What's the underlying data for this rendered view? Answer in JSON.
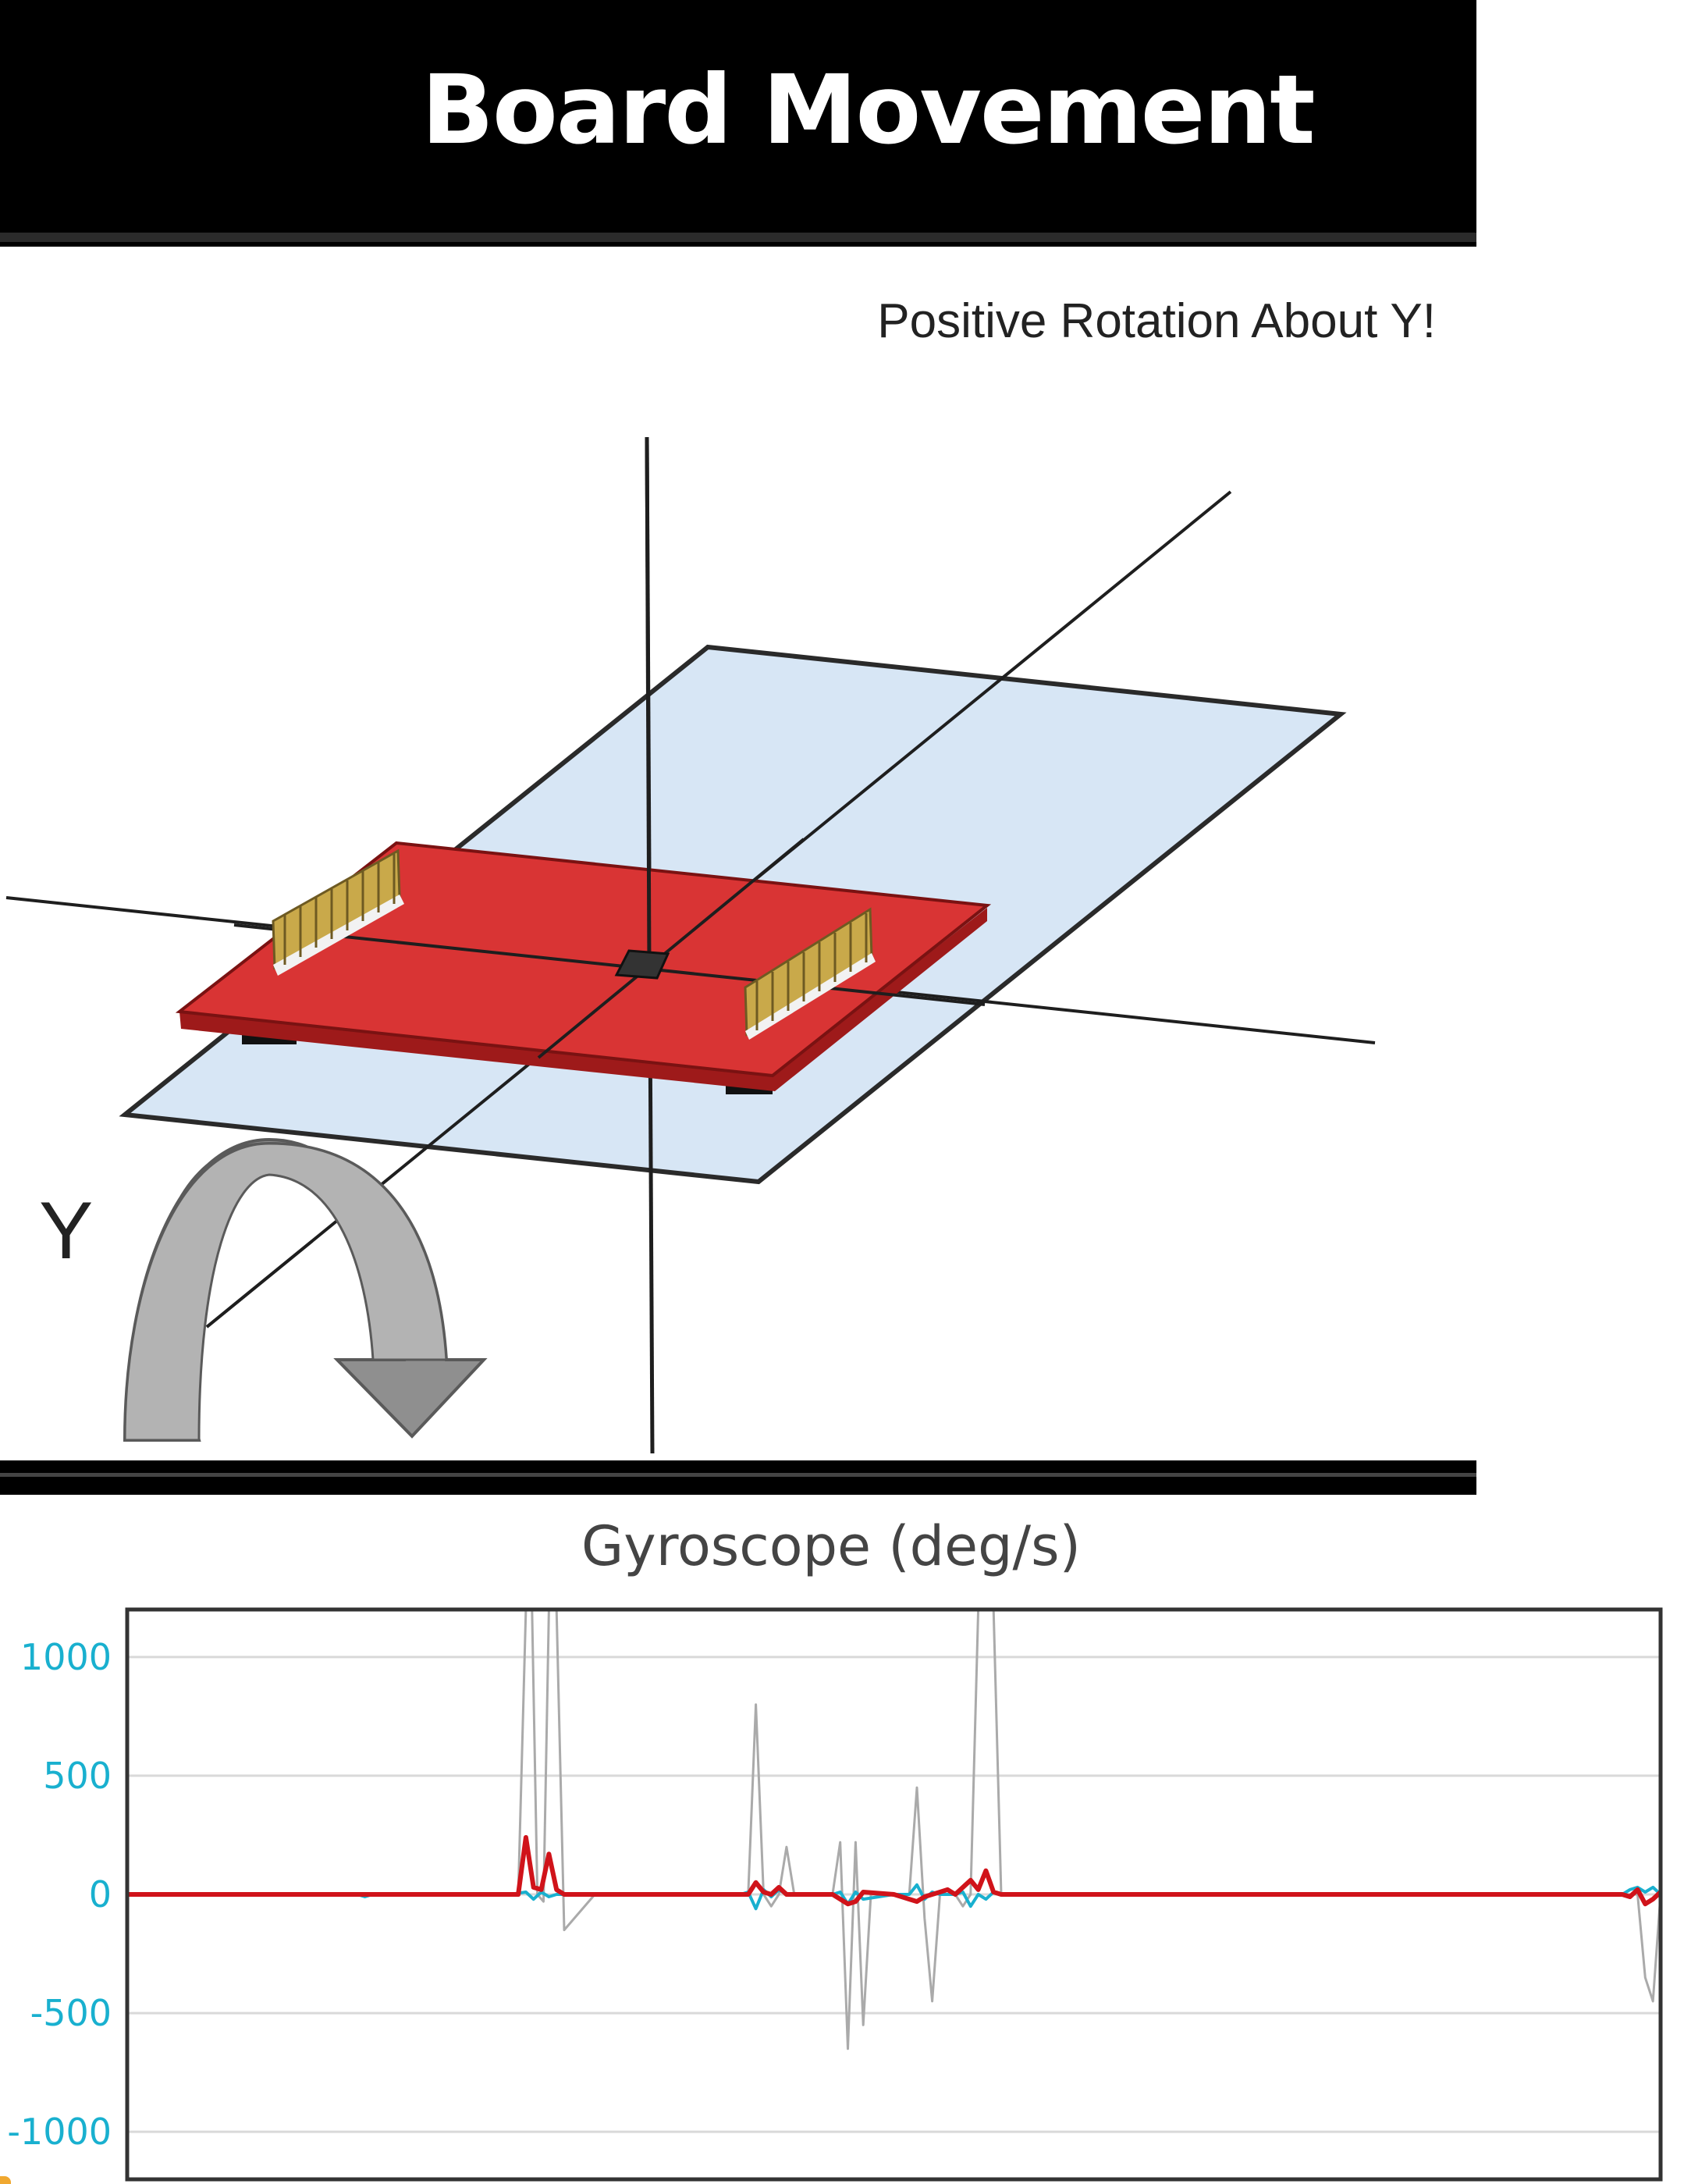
{
  "panel": {
    "title": "Board Movement",
    "caption": "Positive Rotation About Y!",
    "axis_label": "Y",
    "colors": {
      "board": "#d93434",
      "plane": "#d7e6f5",
      "headers": "#c9a94a",
      "arrow": "#8a8a8a"
    }
  },
  "chart_data": {
    "type": "line",
    "title": "Gyroscope (deg/s)",
    "xlabel": "",
    "ylabel": "",
    "ylim": [
      -1200,
      1200
    ],
    "yticks": [
      1000,
      500,
      0,
      -500,
      -1000
    ],
    "ytick_labels": [
      "1000",
      "500",
      "0",
      "-500",
      "-1000"
    ],
    "xlim": [
      0,
      200
    ],
    "grid": true,
    "legend": "none",
    "series": [
      {
        "color": "#aaaaaa",
        "x": [
          0,
          50,
          51,
          52,
          52.8,
          53.5,
          54.3,
          55,
          56,
          57,
          61,
          80,
          81,
          82,
          83,
          84,
          85,
          86,
          87,
          92,
          93,
          94,
          95,
          96,
          97,
          98,
          99,
          100,
          102,
          103,
          104,
          105,
          106,
          107,
          108,
          109,
          110,
          111,
          112,
          113,
          114,
          115,
          116,
          117,
          119,
          120,
          195,
          196,
          197,
          198,
          199,
          200
        ],
        "y": [
          0,
          0,
          0,
          1200,
          1200,
          0,
          -30,
          1200,
          1200,
          -150,
          0,
          0,
          0,
          800,
          0,
          -50,
          0,
          200,
          0,
          0,
          220,
          -650,
          220,
          -550,
          0,
          0,
          0,
          0,
          0,
          450,
          -100,
          -450,
          0,
          0,
          0,
          -50,
          0,
          1200,
          1200,
          1200,
          0,
          0,
          0,
          0,
          0,
          0,
          0,
          0,
          0,
          -350,
          -450,
          0
        ]
      },
      {
        "color": "#19b0cf",
        "x": [
          0,
          30,
          31,
          32,
          50,
          52,
          53,
          54,
          55,
          56,
          80,
          81,
          82,
          83,
          84,
          85,
          86,
          87,
          92,
          93,
          94,
          95,
          96,
          100,
          102,
          103,
          104,
          105,
          106,
          108,
          109,
          110,
          111,
          112,
          113,
          114,
          115,
          120,
          195,
          196,
          197,
          198,
          199,
          200
        ],
        "y": [
          0,
          0,
          -10,
          0,
          0,
          10,
          -20,
          10,
          -10,
          0,
          0,
          10,
          -60,
          20,
          -10,
          20,
          0,
          0,
          0,
          10,
          -40,
          10,
          -20,
          0,
          0,
          40,
          -20,
          10,
          0,
          0,
          10,
          -50,
          0,
          -20,
          10,
          0,
          0,
          0,
          0,
          20,
          30,
          10,
          30,
          0
        ]
      },
      {
        "color": "#d0131a",
        "x": [
          0,
          50,
          51,
          52,
          53,
          54,
          55,
          56,
          57,
          80,
          81,
          82,
          83,
          84,
          85,
          86,
          87,
          92,
          93,
          94,
          95,
          96,
          100,
          101,
          102,
          103,
          104,
          105,
          106,
          107,
          108,
          109,
          110,
          111,
          112,
          113,
          114,
          120,
          195,
          196,
          197,
          198,
          199,
          200
        ],
        "y": [
          0,
          0,
          0,
          240,
          30,
          20,
          170,
          20,
          0,
          0,
          0,
          50,
          10,
          0,
          30,
          0,
          0,
          0,
          -20,
          -40,
          -30,
          10,
          0,
          -10,
          -20,
          -30,
          -10,
          0,
          10,
          20,
          0,
          30,
          60,
          20,
          100,
          10,
          0,
          0,
          0,
          -10,
          20,
          -40,
          -20,
          10
        ]
      }
    ]
  }
}
